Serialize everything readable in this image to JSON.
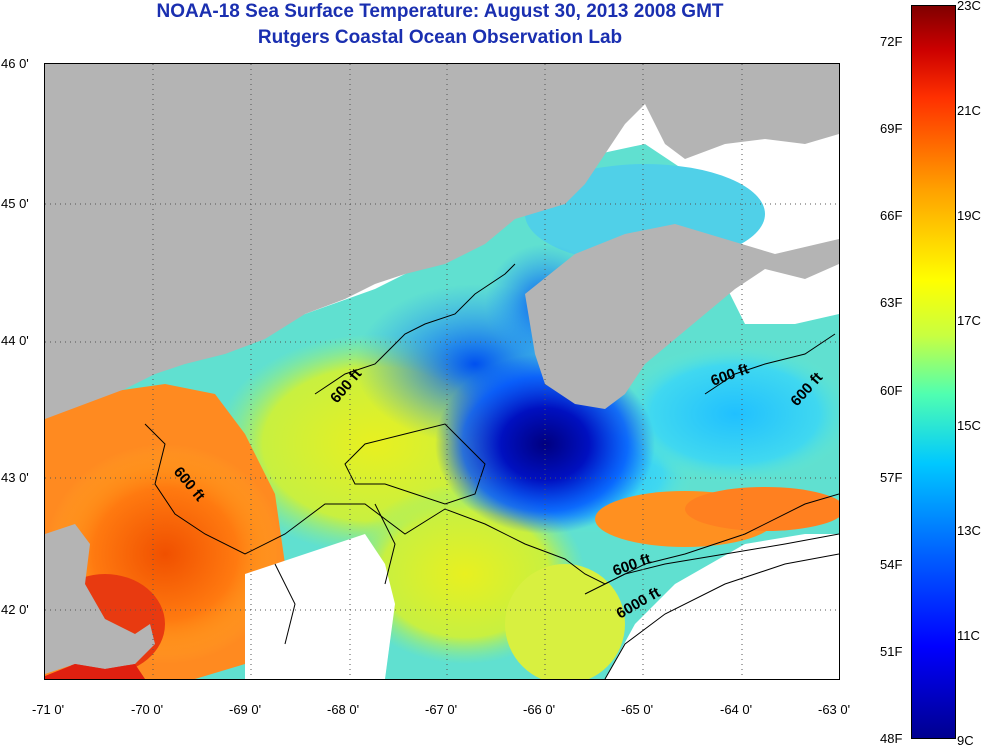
{
  "title": {
    "line1": "NOAA-18 Sea Surface Temperature:  August 30, 2013 2008 GMT",
    "line2": "Rutgers Coastal Ocean Observation Lab",
    "color": "#1a2fb0"
  },
  "map": {
    "lat_labels": [
      "46 0'",
      "45 0'",
      "44 0'",
      "43 0'",
      "42 0'"
    ],
    "lon_labels": [
      "-71 0'",
      "-70 0'",
      "-69 0'",
      "-68 0'",
      "-67 0'",
      "-66 0'",
      "-65 0'",
      "-64 0'",
      "-63 0'"
    ],
    "contour_labels": [
      "600 ft",
      "600 ft",
      "600 ft",
      "600 ft",
      "600 ft",
      "6000 ft"
    ],
    "land_color": "#b4b4b4",
    "no_data_color": "#ffffff"
  },
  "colorbar": {
    "fahrenheit_labels": [
      "72F",
      "69F",
      "66F",
      "63F",
      "60F",
      "57F",
      "54F",
      "51F",
      "48F"
    ],
    "celsius_labels": [
      "23C",
      "21C",
      "19C",
      "17C",
      "15C",
      "13C",
      "11C",
      "9C"
    ],
    "min_c": 9,
    "max_c": 23
  }
}
